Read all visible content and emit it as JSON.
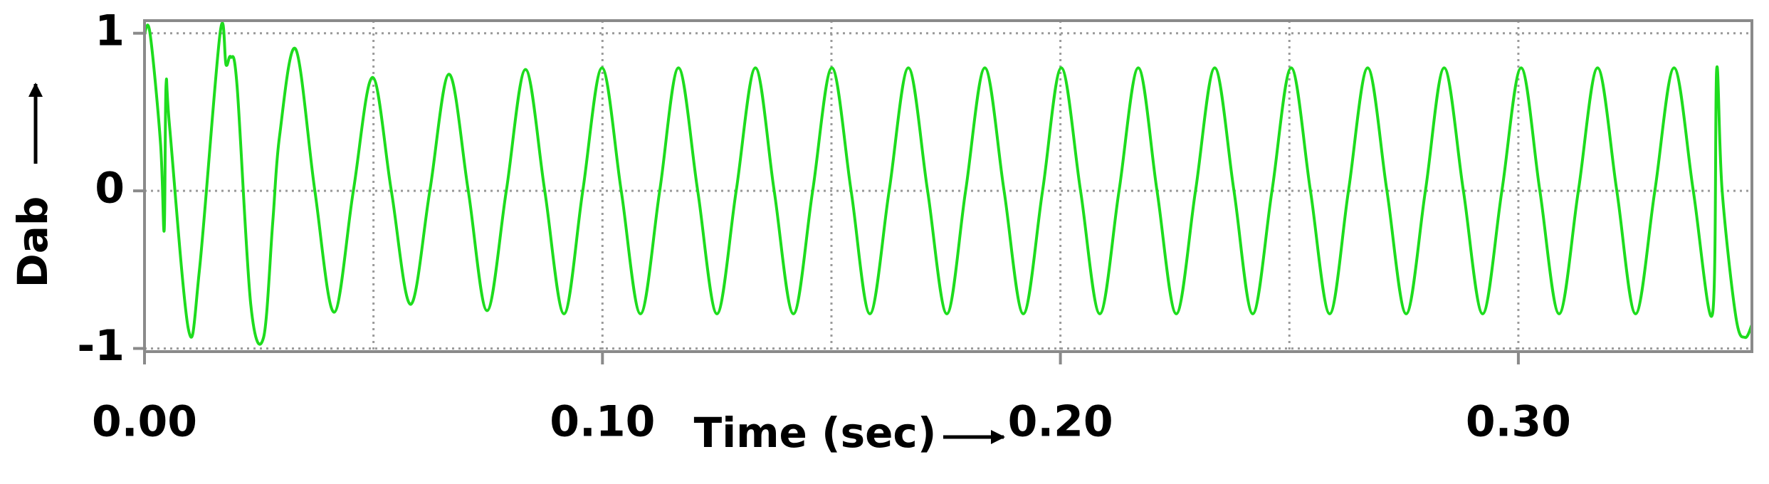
{
  "chart_data": {
    "type": "line",
    "xlabel": "Time (sec)",
    "ylabel": "Dab",
    "xlim": [
      0,
      0.351
    ],
    "ylim": [
      -1.02,
      1.08
    ],
    "xticks": [
      {
        "value": 0,
        "label": "0.00"
      },
      {
        "value": 0.1,
        "label": "0.10"
      },
      {
        "value": 0.2,
        "label": "0.20"
      },
      {
        "value": 0.3,
        "label": "0.30"
      }
    ],
    "xgrid": [
      0.05,
      0.1,
      0.15,
      0.2,
      0.25,
      0.3
    ],
    "yticks": [
      -1,
      0,
      1
    ],
    "grid": true,
    "series": [
      {
        "color": "#1edc1e",
        "x": [
          0,
          0.0012,
          0.0035,
          0.0043,
          0.0047,
          0.0055,
          0.0096,
          0.012,
          0.0165,
          0.0178,
          0.0188,
          0.0202,
          0.0232,
          0.026,
          0.028,
          0.0295,
          0.033,
          0.0372,
          0.0414,
          0.0456,
          0.0498,
          0.0539,
          0.0581,
          0.0623,
          0.0665,
          0.0707,
          0.0748,
          0.079,
          0.0832,
          0.0874,
          0.0916,
          0.0957,
          0.0999,
          0.1041,
          0.1083,
          0.1125,
          0.1166,
          0.1208,
          0.125,
          0.1292,
          0.1334,
          0.1375,
          0.1417,
          0.1459,
          0.1501,
          0.1543,
          0.1584,
          0.1626,
          0.1668,
          0.171,
          0.1752,
          0.1793,
          0.1835,
          0.1877,
          0.1919,
          0.1961,
          0.2002,
          0.2044,
          0.2086,
          0.2128,
          0.217,
          0.2211,
          0.2253,
          0.2295,
          0.2337,
          0.2379,
          0.242,
          0.2462,
          0.2504,
          0.2546,
          0.2588,
          0.2629,
          0.2671,
          0.2713,
          0.2755,
          0.2797,
          0.2838,
          0.288,
          0.2922,
          0.2964,
          0.3006,
          0.3047,
          0.3089,
          0.3131,
          0.3173,
          0.3215,
          0.3256,
          0.3298,
          0.334,
          0.3382,
          0.3424,
          0.3433,
          0.3445,
          0.3475,
          0.3495,
          0.351
        ],
        "values": [
          1.0,
          1.0,
          0.3,
          -0.25,
          0.67,
          0.4,
          -0.88,
          -0.5,
          1.0,
          0.8,
          0.85,
          0.67,
          -0.72,
          -0.93,
          -0.2,
          0.35,
          0.9,
          0,
          -0.77,
          0,
          0.72,
          0,
          -0.72,
          0,
          0.74,
          0,
          -0.76,
          0,
          0.77,
          0,
          -0.78,
          0,
          0.78,
          0,
          -0.78,
          0,
          0.78,
          0,
          -0.78,
          0,
          0.78,
          0,
          -0.78,
          0,
          0.78,
          0,
          -0.78,
          0,
          0.78,
          0,
          -0.78,
          0,
          0.78,
          0,
          -0.78,
          0,
          0.78,
          0,
          -0.78,
          0,
          0.78,
          0,
          -0.78,
          0,
          0.78,
          0,
          -0.78,
          0,
          0.78,
          0,
          -0.78,
          0,
          0.78,
          0,
          -0.78,
          0,
          0.78,
          0,
          -0.78,
          0,
          0.78,
          0,
          -0.78,
          0,
          0.78,
          0,
          -0.78,
          0,
          0.78,
          0,
          -0.78,
          0.77,
          0,
          -0.8,
          -0.93,
          -0.85
        ]
      }
    ]
  }
}
